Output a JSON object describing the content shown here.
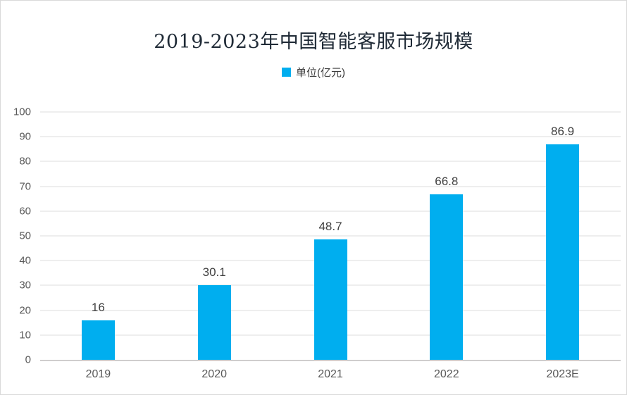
{
  "chart_data": {
    "type": "bar",
    "title": "2019-2023年中国智能客服市场规模",
    "categories": [
      "2019",
      "2020",
      "2021",
      "2022",
      "2023E"
    ],
    "values": [
      16,
      30.1,
      48.7,
      66.8,
      86.9
    ],
    "value_labels": [
      "16",
      "30.1",
      "48.7",
      "66.8",
      "86.9"
    ],
    "series_name": "单位(亿元)",
    "legend_position": "top",
    "xlabel": "",
    "ylabel": "",
    "ylim": [
      0,
      100
    ],
    "yticks": [
      0,
      10,
      20,
      30,
      40,
      50,
      60,
      70,
      80,
      90,
      100
    ],
    "grid": true,
    "bar_color": "#00aeef"
  },
  "legend": {
    "label": "单位(亿元)",
    "swatch_color": "#00aeef"
  },
  "colors": {
    "bar": "#00aeef",
    "title_text": "#1f2a36",
    "axis_text": "#595959",
    "value_text": "#404040",
    "gridline": "#dcdcdc",
    "axis_line": "#cfcdcd"
  }
}
